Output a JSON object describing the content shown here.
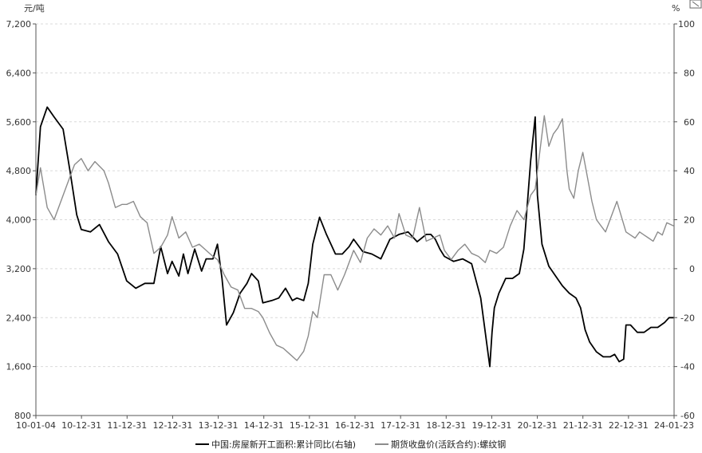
{
  "chart_data": {
    "type": "line",
    "title": "",
    "left_axis": {
      "unit": "元/吨",
      "ylim": [
        800,
        7200
      ],
      "ticks": [
        "7,200",
        "6,400",
        "5,600",
        "4,800",
        "4,000",
        "3,200",
        "2,400",
        "1,600",
        "800"
      ]
    },
    "right_axis": {
      "unit": "%",
      "ylim": [
        -60,
        100
      ],
      "ticks": [
        "100",
        "80",
        "60",
        "40",
        "20",
        "0",
        "-20",
        "-40",
        "-60"
      ]
    },
    "x_ticks": [
      "10-01-04",
      "10-12-31",
      "11-12-31",
      "12-12-31",
      "13-12-31",
      "14-12-31",
      "15-12-31",
      "16-12-31",
      "17-12-31",
      "18-12-31",
      "19-12-31",
      "20-12-31",
      "21-12-31",
      "22-12-31",
      "24-01-23"
    ],
    "grid": true,
    "legend_position": "bottom",
    "series": [
      {
        "name": "中国:房屋新开工面积:累计同比(右轴)",
        "axis": "right",
        "color": "#000000",
        "x": [
          2010.0,
          2010.1,
          2010.25,
          2010.4,
          2010.6,
          2010.75,
          2010.9,
          2011.0,
          2011.2,
          2011.4,
          2011.6,
          2011.8,
          2012.0,
          2012.2,
          2012.4,
          2012.6,
          2012.75,
          2012.9,
          2013.0,
          2013.15,
          2013.25,
          2013.35,
          2013.5,
          2013.65,
          2013.75,
          2013.9,
          2014.0,
          2014.1,
          2014.2,
          2014.35,
          2014.5,
          2014.65,
          2014.75,
          2014.9,
          2015.0,
          2015.2,
          2015.35,
          2015.5,
          2015.65,
          2015.75,
          2015.9,
          2016.0,
          2016.1,
          2016.25,
          2016.4,
          2016.6,
          2016.75,
          2016.9,
          2017.0,
          2017.2,
          2017.4,
          2017.6,
          2017.8,
          2018.0,
          2018.2,
          2018.4,
          2018.6,
          2018.7,
          2018.8,
          2018.9,
          2019.0,
          2019.2,
          2019.4,
          2019.6,
          2019.8,
          2020.0,
          2020.05,
          2020.1,
          2020.2,
          2020.35,
          2020.5,
          2020.65,
          2020.75,
          2020.9,
          2021.0,
          2021.05,
          2021.15,
          2021.3,
          2021.45,
          2021.6,
          2021.75,
          2021.9,
          2022.0,
          2022.1,
          2022.2,
          2022.35,
          2022.5,
          2022.65,
          2022.75,
          2022.85,
          2022.95,
          2023.0,
          2023.1,
          2023.25,
          2023.4,
          2023.55,
          2023.7,
          2023.85,
          2023.95,
          2024.05
        ],
        "values": [
          30,
          58,
          66,
          62,
          57,
          40,
          22,
          16,
          15,
          18,
          11,
          6,
          -5,
          -8,
          -6,
          -6,
          9,
          -2,
          3,
          -3,
          6,
          -2,
          8,
          -1,
          4,
          4,
          10,
          -4,
          -23,
          -18,
          -10,
          -6,
          -2,
          -5,
          -14,
          -13,
          -12,
          -8,
          -13,
          -12,
          -13,
          -6,
          10,
          21,
          14,
          6,
          6,
          9,
          12,
          7,
          6,
          4,
          12,
          14,
          15,
          11,
          14,
          14,
          12,
          8,
          5,
          3,
          4,
          2,
          -12,
          -40,
          -26,
          -16,
          -10,
          -4,
          -4,
          -2,
          8,
          44,
          62,
          30,
          10,
          1,
          -3,
          -7,
          -10,
          -12,
          -16,
          -25,
          -30,
          -34,
          -36,
          -36,
          -35,
          -38,
          -37,
          -23,
          -23,
          -26,
          -26,
          -24,
          -24,
          -22,
          -20,
          -20
        ],
        "note": "values approximate; series ends near -20"
      },
      {
        "name": "期货收盘价(活跃合约):螺纹钢",
        "axis": "left",
        "color": "#8c8c8c",
        "x": [
          2010.0,
          2010.1,
          2010.25,
          2010.4,
          2010.55,
          2010.7,
          2010.85,
          2011.0,
          2011.15,
          2011.3,
          2011.5,
          2011.6,
          2011.75,
          2011.9,
          2012.0,
          2012.15,
          2012.3,
          2012.45,
          2012.6,
          2012.75,
          2012.9,
          2013.0,
          2013.15,
          2013.3,
          2013.45,
          2013.6,
          2013.75,
          2013.9,
          2014.0,
          2014.15,
          2014.3,
          2014.45,
          2014.6,
          2014.75,
          2014.9,
          2015.0,
          2015.15,
          2015.3,
          2015.45,
          2015.6,
          2015.75,
          2015.9,
          2016.0,
          2016.1,
          2016.2,
          2016.35,
          2016.5,
          2016.65,
          2016.8,
          2016.9,
          2017.0,
          2017.15,
          2017.3,
          2017.45,
          2017.6,
          2017.75,
          2017.9,
          2018.0,
          2018.15,
          2018.3,
          2018.45,
          2018.6,
          2018.75,
          2018.9,
          2019.0,
          2019.15,
          2019.3,
          2019.45,
          2019.6,
          2019.75,
          2019.9,
          2020.0,
          2020.15,
          2020.3,
          2020.45,
          2020.6,
          2020.75,
          2020.9,
          2021.0,
          2021.1,
          2021.2,
          2021.3,
          2021.4,
          2021.5,
          2021.6,
          2021.7,
          2021.75,
          2021.85,
          2021.95,
          2022.05,
          2022.15,
          2022.25,
          2022.35,
          2022.45,
          2022.55,
          2022.7,
          2022.8,
          2022.9,
          2023.0,
          2023.1,
          2023.2,
          2023.3,
          2023.4,
          2023.5,
          2023.6,
          2023.7,
          2023.8,
          2023.9,
          2024.05
        ],
        "values": [
          4400,
          4850,
          4200,
          4000,
          4300,
          4600,
          4900,
          5000,
          4800,
          4950,
          4800,
          4600,
          4200,
          4250,
          4250,
          4300,
          4050,
          3950,
          3450,
          3550,
          3750,
          4050,
          3700,
          3800,
          3550,
          3600,
          3500,
          3400,
          3350,
          3100,
          2900,
          2850,
          2550,
          2550,
          2500,
          2400,
          2150,
          1950,
          1900,
          1800,
          1700,
          1850,
          2100,
          2500,
          2400,
          3100,
          3100,
          2850,
          3100,
          3300,
          3500,
          3300,
          3700,
          3850,
          3750,
          3900,
          3700,
          4100,
          3750,
          3700,
          4200,
          3650,
          3700,
          3750,
          3500,
          3350,
          3500,
          3600,
          3450,
          3400,
          3300,
          3500,
          3450,
          3550,
          3900,
          4150,
          4000,
          4400,
          4500,
          5100,
          5700,
          5200,
          5400,
          5500,
          5650,
          4800,
          4500,
          4350,
          4800,
          5100,
          4700,
          4300,
          4000,
          3900,
          3800,
          4100,
          4300,
          4050,
          3800,
          3750,
          3700,
          3800,
          3750,
          3700,
          3650,
          3800,
          3750,
          3950,
          3900
        ],
        "note": "values approximate"
      }
    ]
  },
  "ui": {
    "corner_icon": "expand-icon"
  }
}
